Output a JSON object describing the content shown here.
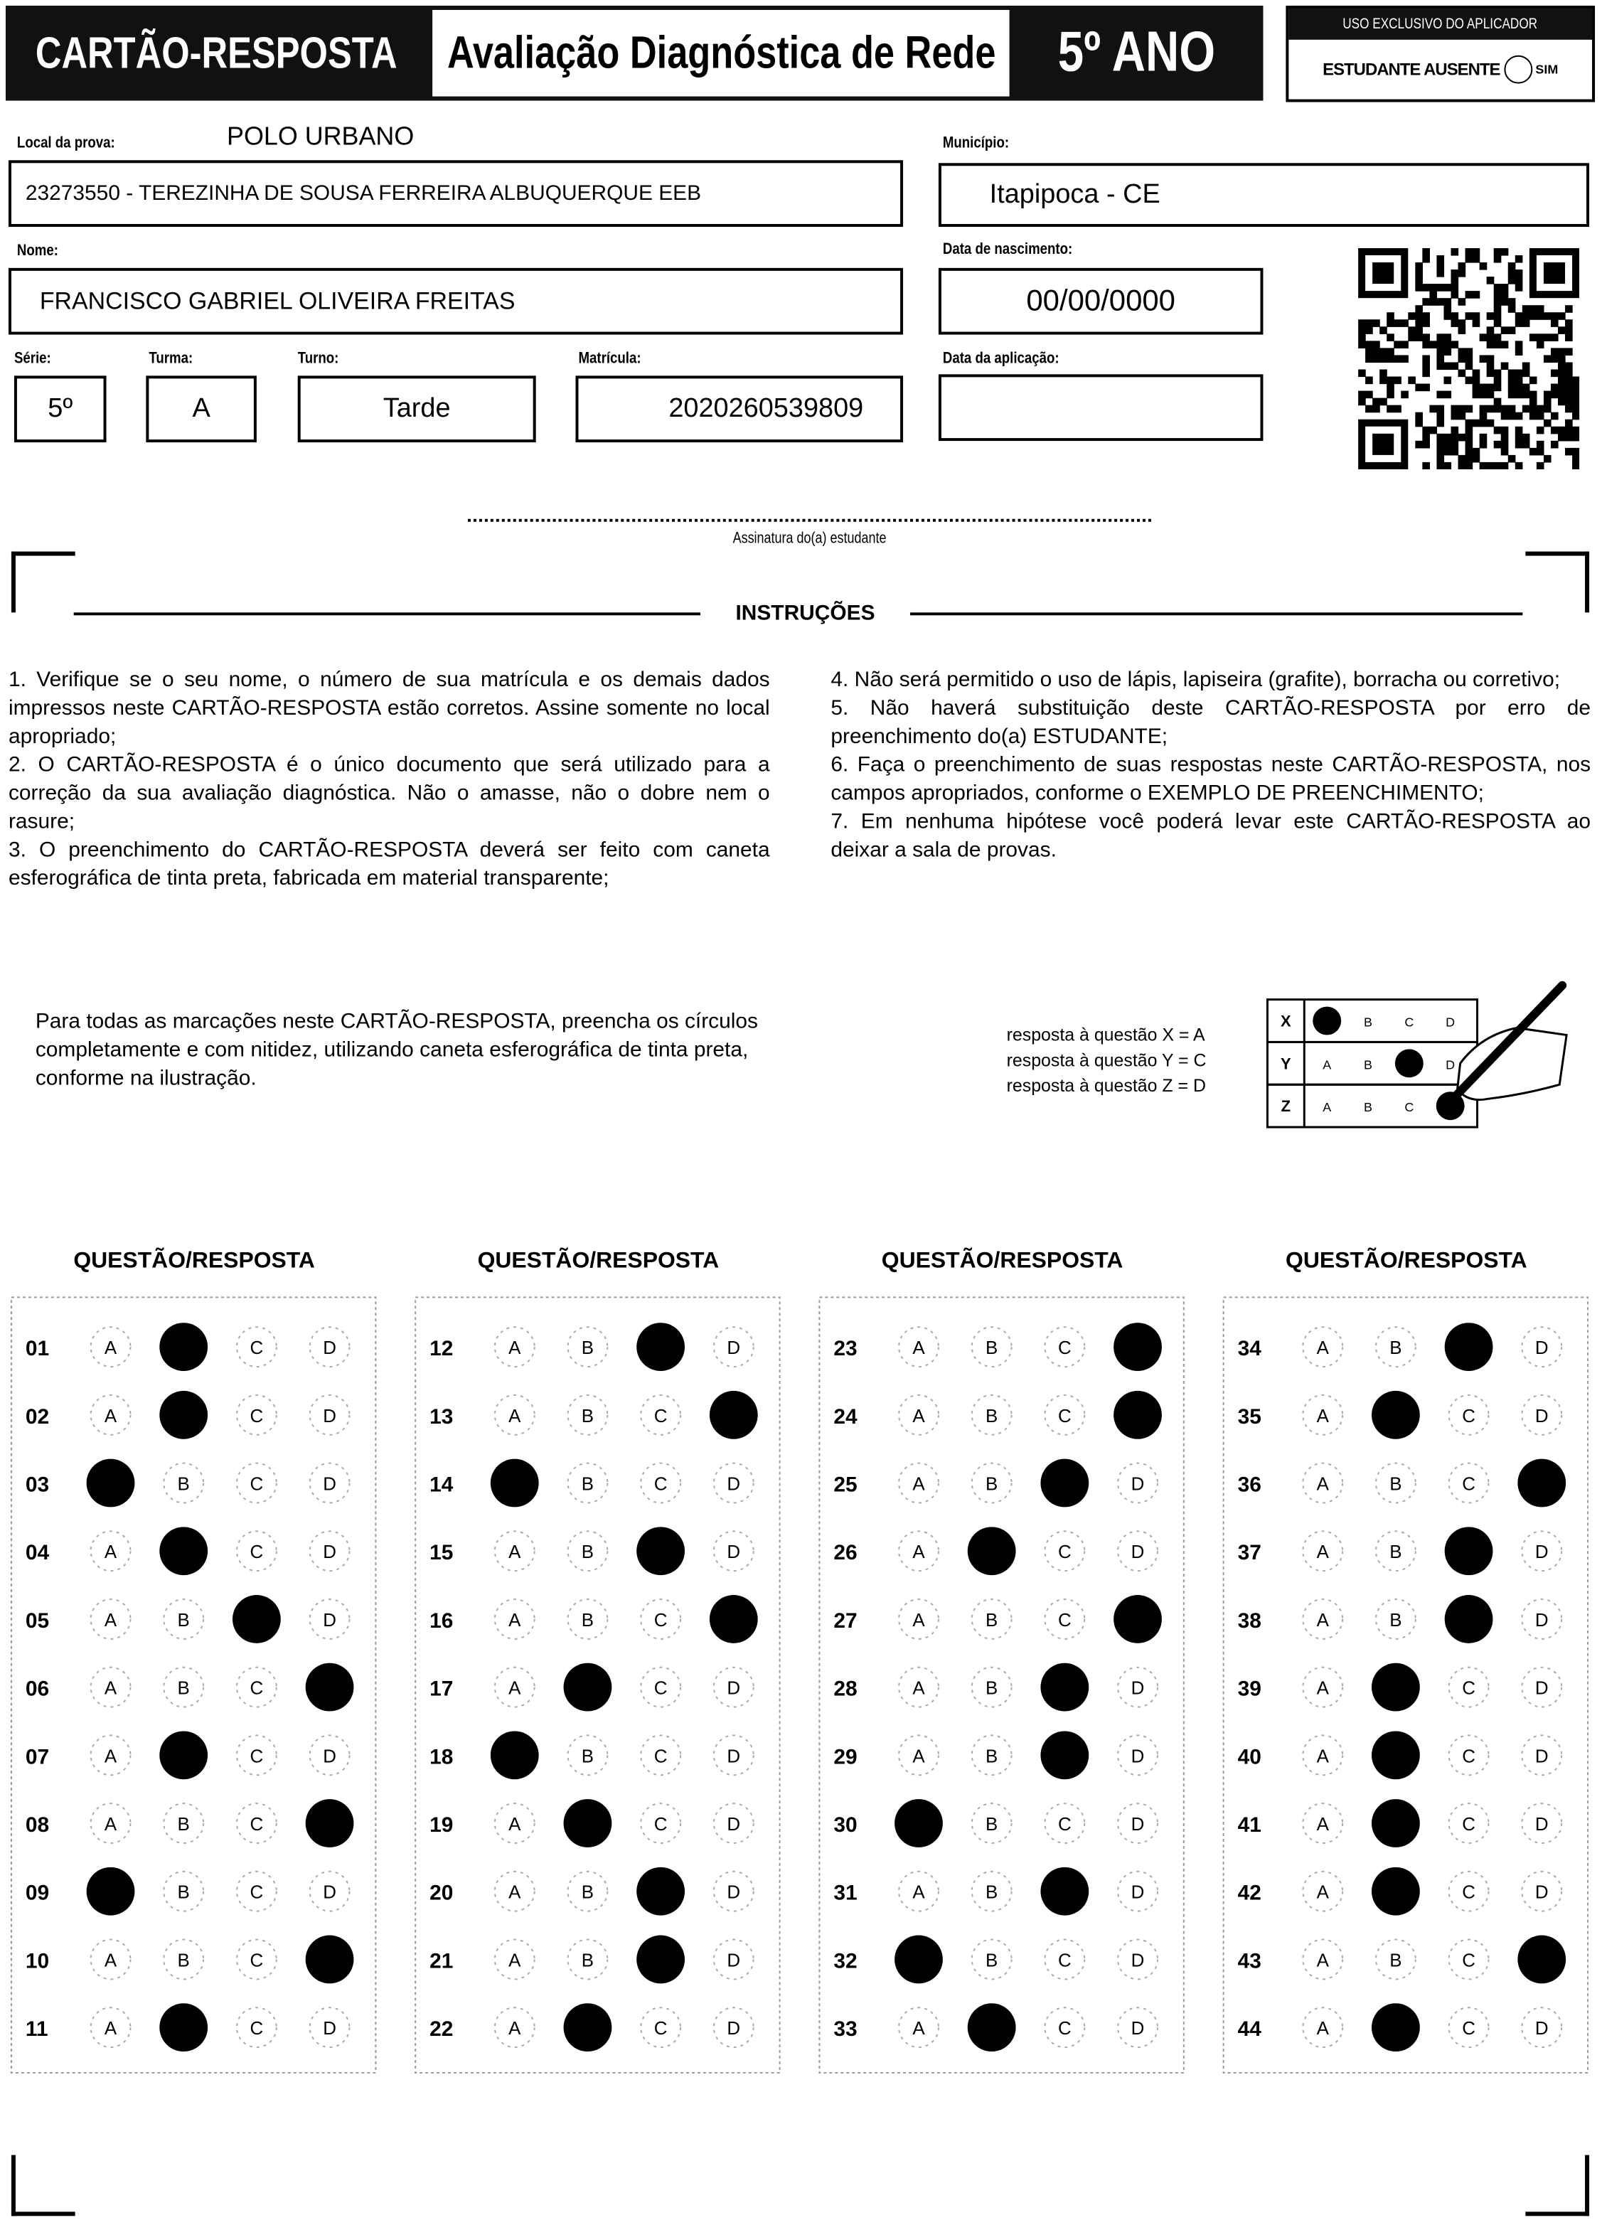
{
  "header": {
    "title": "CARTÃO-RESPOSTA",
    "subtitle": "Avaliação Diagnóstica de Rede",
    "grade": "5º ANO",
    "applicator": {
      "label": "USO EXCLUSIVO DO APLICADOR",
      "absent": "ESTUDANTE AUSENTE",
      "yes": "SIM"
    }
  },
  "fields": {
    "location": {
      "label": "Local da prova:",
      "value": "POLO URBANO",
      "school": "23273550 - TEREZINHA DE SOUSA FERREIRA ALBUQUERQUE EEB"
    },
    "municipality": {
      "label": "Município:",
      "value": "Itapipoca - CE"
    },
    "name": {
      "label": "Nome:",
      "value": "FRANCISCO GABRIEL OLIVEIRA FREITAS"
    },
    "birth": {
      "label": "Data de nascimento:",
      "value": "00/00/0000"
    },
    "grade": {
      "label": "Série:",
      "value": "5º"
    },
    "class": {
      "label": "Turma:",
      "value": "A"
    },
    "shift": {
      "label": "Turno:",
      "value": "Tarde"
    },
    "registration": {
      "label": "Matrícula:",
      "value": "2020260539809"
    },
    "application_date": {
      "label": "Data da aplicação:"
    }
  },
  "signature": "Assinatura do(a) estudante",
  "instructions": {
    "title": "INSTRUÇÕES",
    "left": [
      "1. Verifique se o seu nome, o número de sua matrícula e os demais dados impressos neste CARTÃO-RESPOSTA estão corretos. Assine somente no local apropriado;",
      "2. O CARTÃO-RESPOSTA é o único documento que será utilizado para a correção da sua avaliação diagnóstica. Não o amasse, não o dobre nem o rasure;",
      "3. O preenchimento do CARTÃO-RESPOSTA deverá ser feito com caneta esferográfica de tinta preta, fabricada em material transparente;"
    ],
    "right": [
      "4. Não será permitido o uso de lápis, lapiseira (grafite), borracha ou corretivo;",
      "5. Não haverá substituição deste CARTÃO-RESPOSTA por erro de preenchimento do(a) ESTUDANTE;",
      "6. Faça o preenchimento de suas respostas neste CARTÃO-RESPOSTA, nos campos apropriados, conforme o EXEMPLO DE PREENCHIMENTO;",
      "7. Em nenhuma hipótese você poderá levar este CARTÃO-RESPOSTA ao deixar a sala de provas."
    ]
  },
  "guidance": "Para todas as marcações neste CARTÃO-RESPOSTA, preencha os círculos completamente e com nitidez, utilizando caneta esferográfica de tinta preta, conforme na ilustração.",
  "example": {
    "legend": [
      "resposta à questão X = A",
      "resposta à questão Y = C",
      "resposta à questão Z = D"
    ],
    "rows": [
      {
        "label": "X",
        "answer": "A"
      },
      {
        "label": "Y",
        "answer": "C"
      },
      {
        "label": "Z",
        "answer": "D"
      }
    ]
  },
  "answers": {
    "heading": "QUESTÃO/RESPOSTA",
    "options": [
      "A",
      "B",
      "C",
      "D"
    ],
    "questions": [
      {
        "number": "01",
        "answer": "B"
      },
      {
        "number": "02",
        "answer": "B"
      },
      {
        "number": "03",
        "answer": "A"
      },
      {
        "number": "04",
        "answer": "B"
      },
      {
        "number": "05",
        "answer": "C"
      },
      {
        "number": "06",
        "answer": "D"
      },
      {
        "number": "07",
        "answer": "B"
      },
      {
        "number": "08",
        "answer": "D"
      },
      {
        "number": "09",
        "answer": "A"
      },
      {
        "number": "10",
        "answer": "D"
      },
      {
        "number": "11",
        "answer": "B"
      },
      {
        "number": "12",
        "answer": "C"
      },
      {
        "number": "13",
        "answer": "D"
      },
      {
        "number": "14",
        "answer": "A"
      },
      {
        "number": "15",
        "answer": "C"
      },
      {
        "number": "16",
        "answer": "D"
      },
      {
        "number": "17",
        "answer": "B"
      },
      {
        "number": "18",
        "answer": "A"
      },
      {
        "number": "19",
        "answer": "B"
      },
      {
        "number": "20",
        "answer": "C"
      },
      {
        "number": "21",
        "answer": "C"
      },
      {
        "number": "22",
        "answer": "B"
      },
      {
        "number": "23",
        "answer": "D"
      },
      {
        "number": "24",
        "answer": "D"
      },
      {
        "number": "25",
        "answer": "C"
      },
      {
        "number": "26",
        "answer": "B"
      },
      {
        "number": "27",
        "answer": "D"
      },
      {
        "number": "28",
        "answer": "C"
      },
      {
        "number": "29",
        "answer": "C"
      },
      {
        "number": "30",
        "answer": "A"
      },
      {
        "number": "31",
        "answer": "C"
      },
      {
        "number": "32",
        "answer": "A"
      },
      {
        "number": "33",
        "answer": "B"
      },
      {
        "number": "34",
        "answer": "C"
      },
      {
        "number": "35",
        "answer": "B"
      },
      {
        "number": "36",
        "answer": "D"
      },
      {
        "number": "37",
        "answer": "C"
      },
      {
        "number": "38",
        "answer": "C"
      },
      {
        "number": "39",
        "answer": "B"
      },
      {
        "number": "40",
        "answer": "B"
      },
      {
        "number": "41",
        "answer": "B"
      },
      {
        "number": "42",
        "answer": "B"
      },
      {
        "number": "43",
        "answer": "D"
      },
      {
        "number": "44",
        "answer": "B"
      }
    ]
  }
}
